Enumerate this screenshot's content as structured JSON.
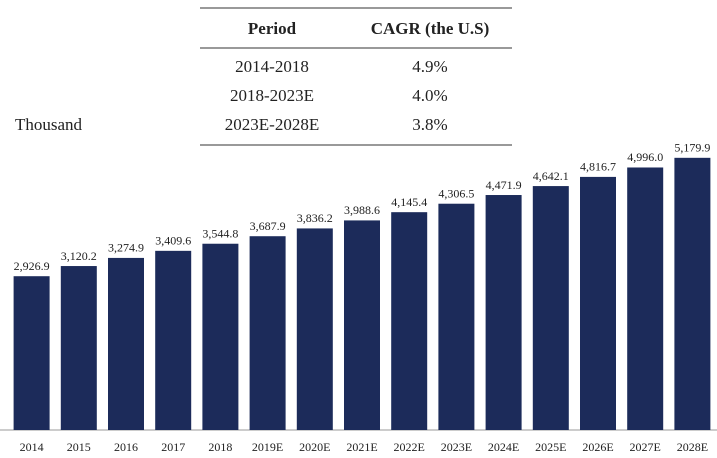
{
  "table": {
    "header": [
      "Period",
      "CAGR (the U.S)"
    ],
    "rows": [
      [
        "2014-2018",
        "4.9%"
      ],
      [
        "2018-2023E",
        "4.0%"
      ],
      [
        "2023E-2028E",
        "3.8%"
      ]
    ]
  },
  "unit_label": "Thousand",
  "chart_data": {
    "type": "bar",
    "categories": [
      "2014",
      "2015",
      "2016",
      "2017",
      "2018",
      "2019E",
      "2020E",
      "2021E",
      "2022E",
      "2023E",
      "2024E",
      "2025E",
      "2026E",
      "2027E",
      "2028E"
    ],
    "values": [
      2926.9,
      3120.2,
      3274.9,
      3409.6,
      3544.8,
      3687.9,
      3836.2,
      3988.6,
      4145.4,
      4306.5,
      4471.9,
      4642.1,
      4816.7,
      4996.0,
      5179.9
    ],
    "value_labels": [
      "2,926.9",
      "3,120.2",
      "3,274.9",
      "3,409.6",
      "3,544.8",
      "3,687.9",
      "3,836.2",
      "3,988.6",
      "4,145.4",
      "4,306.5",
      "4,471.9",
      "4,642.1",
      "4,816.7",
      "4,996.0",
      "5,179.9"
    ],
    "color": "#1c2b5a",
    "ylim": [
      0,
      5500
    ]
  }
}
